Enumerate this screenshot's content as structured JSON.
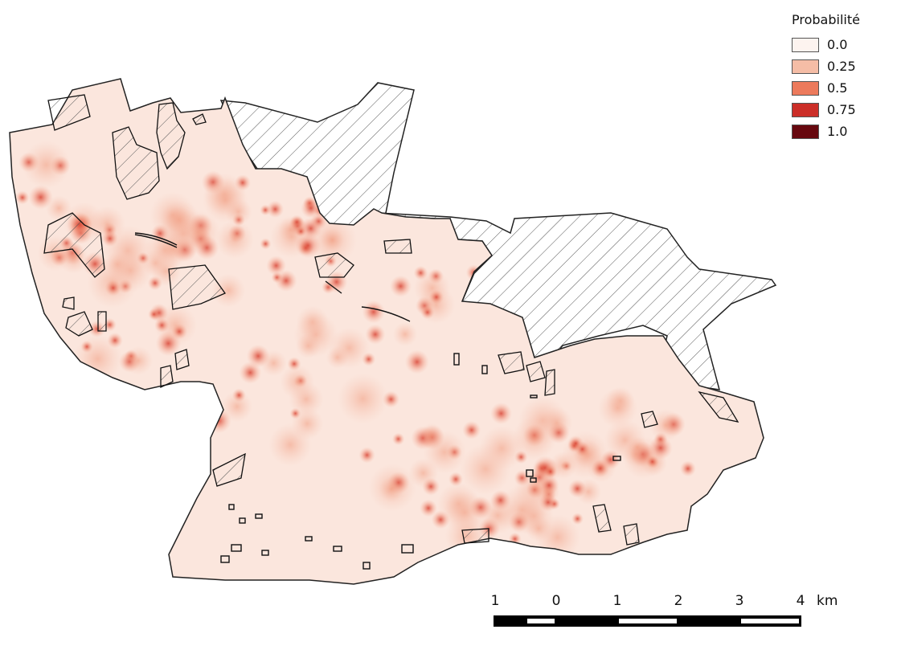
{
  "legend": {
    "title": "Probabilité",
    "items": [
      {
        "label": "0.0",
        "color": "#fdf3ef"
      },
      {
        "label": "0.25",
        "color": "#f5bda6"
      },
      {
        "label": "0.5",
        "color": "#ec7a5c"
      },
      {
        "label": "0.75",
        "color": "#cb2e28"
      },
      {
        "label": "1.0",
        "color": "#67080f"
      }
    ]
  },
  "scalebar": {
    "labels": [
      "1",
      "0",
      "1",
      "2",
      "3",
      "4"
    ],
    "unit": "km"
  },
  "map": {
    "fill_color": "#fbe7df",
    "hotspot_color": "#e0503a",
    "hatch_color": "#555555"
  }
}
